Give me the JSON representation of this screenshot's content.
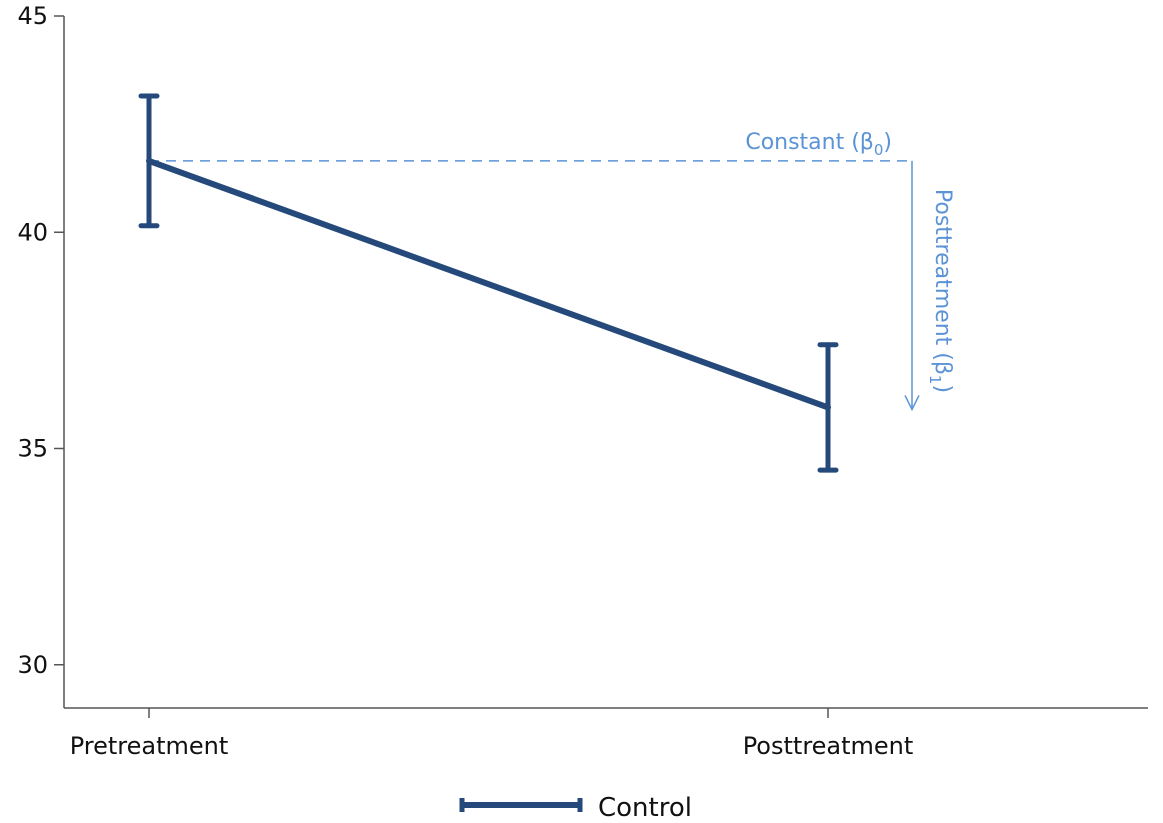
{
  "chart_data": {
    "type": "line",
    "title": "",
    "xlabel": "",
    "ylabel": "",
    "categories": [
      "Pretreatment",
      "Posttreatment"
    ],
    "ylim": [
      29,
      45
    ],
    "yticks": [
      30,
      35,
      40,
      45
    ],
    "grid": false,
    "series": [
      {
        "name": "Control",
        "color": "#24497a",
        "values": [
          41.65,
          35.95
        ],
        "ci_low": [
          40.15,
          34.5
        ],
        "ci_high": [
          43.15,
          37.4
        ]
      }
    ],
    "annotations": {
      "constant_label": "Constant (β",
      "constant_sub": "0",
      "constant_close": ")",
      "post_label": "Posttreatment (β",
      "post_sub": "1",
      "post_close": ")",
      "color": "#5b93d6"
    },
    "legend": {
      "placement": "bottom-center",
      "label": "Control"
    }
  }
}
